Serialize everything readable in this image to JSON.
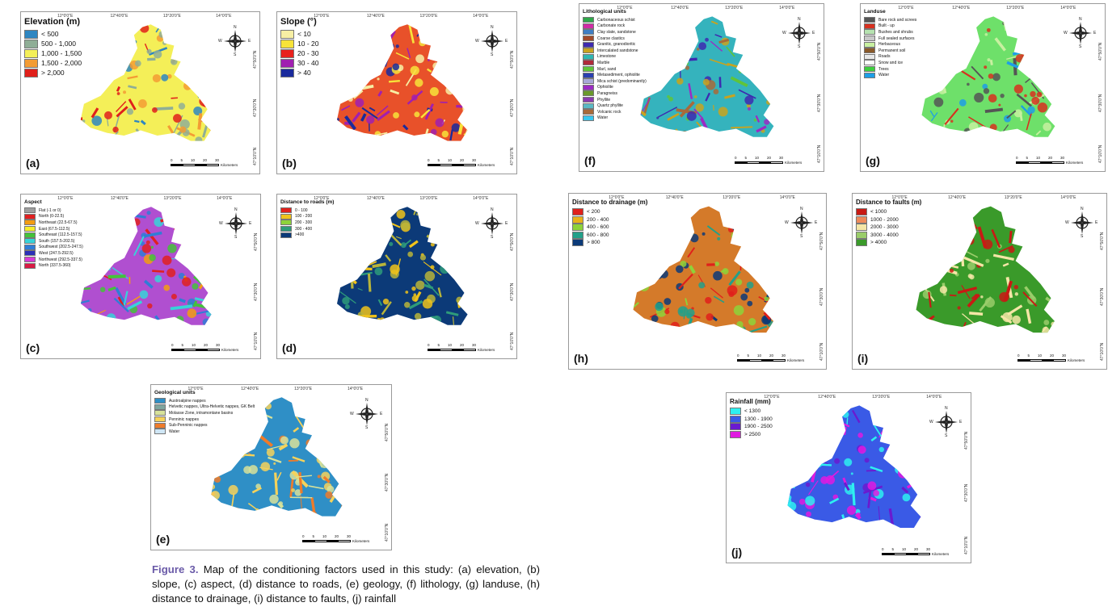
{
  "caption": {
    "label": "Figure 3.",
    "text": "Map of the conditioning factors used in this study: (a) elevation, (b) slope, (c) aspect, (d) distance to roads, (e) geology, (f) lithology, (g) landuse, (h) distance to drainage, (i) distance to faults, (j) rainfall"
  },
  "compass": {
    "n": "N",
    "s": "S",
    "e": "E",
    "w": "W"
  },
  "scale": {
    "ticks": [
      "0",
      "5",
      "10",
      "20",
      "30"
    ],
    "unit": "Kilometers"
  },
  "coords": {
    "top": [
      "12°0'0\"E",
      "12°40'0\"E",
      "13°20'0\"E",
      "14°0'0\"E"
    ],
    "side": [
      "47°50'0\"N",
      "47°30'0\"N",
      "47°10'0\"N"
    ]
  },
  "panels": [
    {
      "id": "a",
      "label": "(a)",
      "size": "l",
      "legend_title": "Elevation (m)",
      "legend": [
        {
          "text": "< 500",
          "color": "#2e86c1"
        },
        {
          "text": "500 - 1,000",
          "color": "#8fae96"
        },
        {
          "text": "1,000 - 1,500",
          "color": "#f4ef58"
        },
        {
          "text": "1,500 - 2,000",
          "color": "#f39c34"
        },
        {
          "text": "> 2,000",
          "color": "#e0201b"
        }
      ],
      "map": {
        "base": "#f4ef58",
        "accents": [
          "#e0201b",
          "#f39c34",
          "#8fae96",
          "#2e86c1"
        ]
      }
    },
    {
      "id": "b",
      "label": "(b)",
      "size": "l",
      "legend_title": "Slope (°)",
      "legend": [
        {
          "text": "< 10",
          "color": "#f7efa4"
        },
        {
          "text": "10 - 20",
          "color": "#f7e33a"
        },
        {
          "text": "20 - 30",
          "color": "#e8211c"
        },
        {
          "text": "30 - 40",
          "color": "#a01fb0"
        },
        {
          "text": "> 40",
          "color": "#1a2a9c"
        }
      ],
      "map": {
        "base": "#e8512a",
        "accents": [
          "#a01fb0",
          "#f7e33a",
          "#f7efa4",
          "#1a2a9c"
        ]
      }
    },
    {
      "id": "c",
      "label": "(c)",
      "size": "s",
      "legend_title": "Aspect",
      "legend": [
        {
          "text": "Flat (-1 or 0)",
          "color": "#9e9e9e"
        },
        {
          "text": "North (0-22.5)",
          "color": "#e02020"
        },
        {
          "text": "Northeast (22.5-67.5)",
          "color": "#f39c12"
        },
        {
          "text": "East (67.5-112.5)",
          "color": "#f7ec2c"
        },
        {
          "text": "Southeast (112.5-157.5)",
          "color": "#44c23a"
        },
        {
          "text": "South (157.5-202.5)",
          "color": "#37d3d8"
        },
        {
          "text": "Southwest (202.5-247.5)",
          "color": "#2f7dd6"
        },
        {
          "text": "West (247.5-292.5)",
          "color": "#2b30b8"
        },
        {
          "text": "Northwest (292.5-337.5)",
          "color": "#d93ad6"
        },
        {
          "text": "North (337.5-360)",
          "color": "#d81b45"
        }
      ],
      "map": {
        "base": "#b04fd0",
        "accents": [
          "#37d3d8",
          "#f39c12",
          "#e02020",
          "#44c23a",
          "#2f7dd6"
        ]
      }
    },
    {
      "id": "d",
      "label": "(d)",
      "size": "s",
      "legend_title": "Distance to roads (m)",
      "legend": [
        {
          "text": "0 - 100",
          "color": "#e0201b"
        },
        {
          "text": "100 - 200",
          "color": "#f0c31a"
        },
        {
          "text": "200 - 300",
          "color": "#8dd33a"
        },
        {
          "text": "300 - 400",
          "color": "#2e9b7a"
        },
        {
          "text": ">400",
          "color": "#0c3a78"
        }
      ],
      "map": {
        "base": "#0c3a78",
        "accents": [
          "#b8b43a",
          "#2e9b7a",
          "#f0c31a"
        ]
      }
    },
    {
      "id": "e",
      "label": "(e)",
      "size": "s",
      "legend_title": "Geological units",
      "legend": [
        {
          "text": "Austroalpine nappes",
          "color": "#2f8fc6"
        },
        {
          "text": "Helvetic nappes, Ultra-Helvetic nappes, GK Belt",
          "color": "#7fa59e"
        },
        {
          "text": "Molasse Zone, intramontane basins",
          "color": "#d7e29a"
        },
        {
          "text": "Penninic nappes",
          "color": "#f6d25a"
        },
        {
          "text": "Sub-Penninic nappes",
          "color": "#ee7b2a"
        },
        {
          "text": "Water",
          "color": "#cfe6f5"
        }
      ],
      "map": {
        "base": "#2f8fc6",
        "accents": [
          "#f6d25a",
          "#ee7b2a",
          "#d7e29a"
        ]
      }
    },
    {
      "id": "f",
      "label": "(f)",
      "size": "s",
      "legend_title": "Lithological units",
      "legend": [
        {
          "text": "Carbonaceous schist",
          "color": "#2fa84a"
        },
        {
          "text": "Carbonate rock",
          "color": "#d12aa6"
        },
        {
          "text": "Clay slate, sandstone",
          "color": "#3f7ec4"
        },
        {
          "text": "Coarse clastics",
          "color": "#a24a2a"
        },
        {
          "text": "Granitic, granodioritic",
          "color": "#3d2ab0"
        },
        {
          "text": "Intercalated sandstone",
          "color": "#c9a31e"
        },
        {
          "text": "Limestone",
          "color": "#2fb6b2"
        },
        {
          "text": "Marble",
          "color": "#b02a3a"
        },
        {
          "text": "Marl, sand",
          "color": "#5fc43a"
        },
        {
          "text": "Metasediment, ophiolite",
          "color": "#2a3fb0"
        },
        {
          "text": "Mica schist (predominantly)",
          "color": "#a8a8d8"
        },
        {
          "text": "Ophiolite",
          "color": "#9c2ac4"
        },
        {
          "text": "Paragneiss",
          "color": "#6a9a2a"
        },
        {
          "text": "Phyllite",
          "color": "#8a3ab0"
        },
        {
          "text": "Quartz phyllite",
          "color": "#5ab8c4"
        },
        {
          "text": "Volcanic rock",
          "color": "#a86a3a"
        },
        {
          "text": "Water",
          "color": "#37c7f0"
        }
      ],
      "map": {
        "base": "#35b3bd",
        "accents": [
          "#3d2ab0",
          "#9c2ac4",
          "#5fc43a",
          "#c9a31e",
          "#a86a3a"
        ]
      }
    },
    {
      "id": "g",
      "label": "(g)",
      "size": "s",
      "legend_title": "Landuse",
      "legend": [
        {
          "text": "Bare rock and screes",
          "color": "#555555"
        },
        {
          "text": "Built - up",
          "color": "#d8301f"
        },
        {
          "text": "Bushes and shrubs",
          "color": "#b6e3b0"
        },
        {
          "text": "Full sealed surfaces",
          "color": "#c8c8c8"
        },
        {
          "text": "Herbaceous",
          "color": "#c8f0a0"
        },
        {
          "text": "Permanent soil",
          "color": "#8a5a2a"
        },
        {
          "text": "Roads",
          "color": "#e8e8e8"
        },
        {
          "text": "Snow and ice",
          "color": "#ffffff"
        },
        {
          "text": "Trees",
          "color": "#3ecf3e"
        },
        {
          "text": "Water",
          "color": "#1e9ee6"
        }
      ],
      "map": {
        "base": "#6ee06a",
        "accents": [
          "#555555",
          "#d8301f",
          "#c8f0a0",
          "#1e9ee6"
        ]
      }
    },
    {
      "id": "h",
      "label": "(h)",
      "size": "m",
      "legend_title": "Distance to drainage (m)",
      "legend": [
        {
          "text": "< 200",
          "color": "#e0201b"
        },
        {
          "text": "200 - 400",
          "color": "#e8b21a"
        },
        {
          "text": "400 - 600",
          "color": "#8dd33a"
        },
        {
          "text": "600 - 800",
          "color": "#22a089"
        },
        {
          "text": "> 800",
          "color": "#0c3a78"
        }
      ],
      "map": {
        "base": "#d47a2a",
        "accents": [
          "#8dd33a",
          "#22a089",
          "#0c3a78",
          "#e0201b"
        ]
      }
    },
    {
      "id": "i",
      "label": "(i)",
      "size": "m",
      "legend_title": "Distance to faults (m)",
      "legend": [
        {
          "text": "< 1000",
          "color": "#c81a14"
        },
        {
          "text": "1000 - 2000",
          "color": "#ee8a5a"
        },
        {
          "text": "2000 - 3000",
          "color": "#f5e6a6"
        },
        {
          "text": "3000 - 4000",
          "color": "#9acd6a"
        },
        {
          "text": "> 4000",
          "color": "#3a9a2a"
        }
      ],
      "map": {
        "base": "#3a9a2a",
        "accents": [
          "#c81a14",
          "#f5e6a6",
          "#9acd6a"
        ]
      }
    },
    {
      "id": "j",
      "label": "(j)",
      "size": "m",
      "legend_title": "Rainfall (mm)",
      "legend": [
        {
          "text": "< 1300",
          "color": "#2ef0f0"
        },
        {
          "text": "1300 - 1900",
          "color": "#3a5ae6"
        },
        {
          "text": "1900 - 2500",
          "color": "#6a1ad0"
        },
        {
          "text": "> 2500",
          "color": "#e01ae0"
        }
      ],
      "map": {
        "base": "#3a5ae6",
        "accents": [
          "#2ef0f0",
          "#6a1ad0",
          "#e01ae0"
        ]
      }
    }
  ]
}
